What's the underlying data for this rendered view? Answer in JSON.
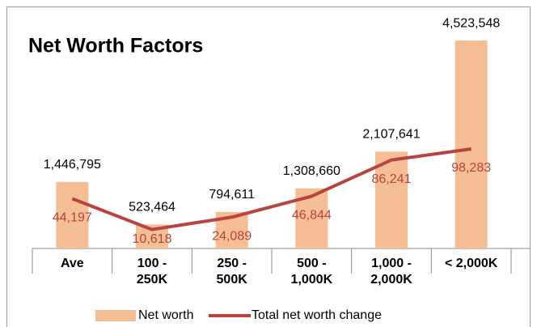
{
  "chart_data": {
    "type": "bar-line",
    "title": "Net Worth Factors",
    "categories": [
      "Ave",
      "100 -\n250K",
      "250 -\n500K",
      "500 -\n1,000K",
      "1,000 -\n2,000K",
      "< 2,000K"
    ],
    "ylim": [
      0,
      5000000
    ],
    "y2lim": [
      -10000,
      240000
    ],
    "series": [
      {
        "name": "Net worth",
        "color": "#f5be94",
        "type": "bar",
        "values": [
          1446795,
          523464,
          794611,
          1308660,
          2107641,
          4523548
        ],
        "value_labels": [
          "1,446,795",
          "523,464",
          "794,611",
          "1,308,660",
          "2,107,641",
          "4,523,548"
        ]
      },
      {
        "name": "Total net worth change",
        "color": "#b8433f",
        "type": "line",
        "axis": "y2",
        "values": [
          44197,
          10618,
          24089,
          46844,
          86241,
          98283
        ],
        "value_labels": [
          "44,197",
          "10,618",
          "24,089",
          "46,844",
          "86,241",
          "98,283"
        ]
      }
    ]
  }
}
